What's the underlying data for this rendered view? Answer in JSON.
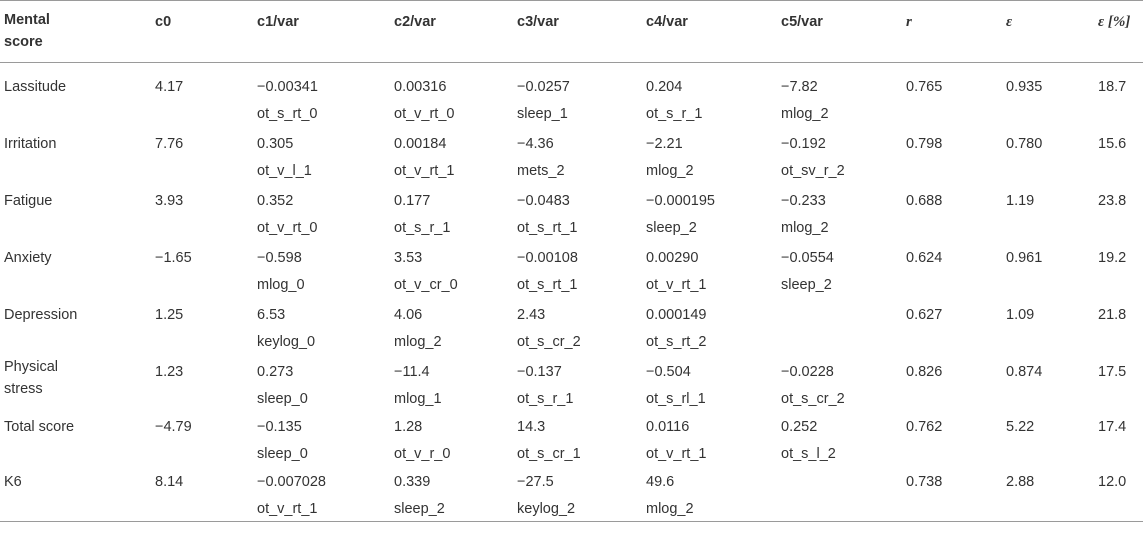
{
  "header": {
    "mental_score": "Mental score",
    "c0": "c0",
    "c1": "c1/var",
    "c2": "c2/var",
    "c3": "c3/var",
    "c4": "c4/var",
    "c5": "c5/var",
    "r": "r",
    "eps": "ε",
    "eps_pct": "ε [%]"
  },
  "rows": [
    {
      "name": "Lassitude",
      "c0": "4.17",
      "c1": "−0.00341",
      "c1_var": "ot_s_rt_0",
      "c2": "0.00316",
      "c2_var": "ot_v_rt_0",
      "c3": "−0.0257",
      "c3_var": "sleep_1",
      "c4": "0.204",
      "c4_var": "ot_s_r_1",
      "c5": "−7.82",
      "c5_var": "mlog_2",
      "r": "0.765",
      "eps": "0.935",
      "eps_pct": "18.7"
    },
    {
      "name": "Irritation",
      "c0": "7.76",
      "c1": "0.305",
      "c1_var": "ot_v_l_1",
      "c2": "0.00184",
      "c2_var": "ot_v_rt_1",
      "c3": "−4.36",
      "c3_var": "mets_2",
      "c4": "−2.21",
      "c4_var": "mlog_2",
      "c5": "−0.192",
      "c5_var": "ot_sv_r_2",
      "r": "0.798",
      "eps": "0.780",
      "eps_pct": "15.6"
    },
    {
      "name": "Fatigue",
      "c0": "3.93",
      "c1": "0.352",
      "c1_var": "ot_v_rt_0",
      "c2": "0.177",
      "c2_var": "ot_s_r_1",
      "c3": "−0.0483",
      "c3_var": "ot_s_rt_1",
      "c4": "−0.000195",
      "c4_var": "sleep_2",
      "c5": "−0.233",
      "c5_var": "mlog_2",
      "r": "0.688",
      "eps": "1.19",
      "eps_pct": "23.8"
    },
    {
      "name": "Anxiety",
      "c0": "−1.65",
      "c1": "−0.598",
      "c1_var": "mlog_0",
      "c2": "3.53",
      "c2_var": "ot_v_cr_0",
      "c3": "−0.00108",
      "c3_var": "ot_s_rt_1",
      "c4": "0.00290",
      "c4_var": "ot_v_rt_1",
      "c5": "−0.0554",
      "c5_var": "sleep_2",
      "r": "0.624",
      "eps": "0.961",
      "eps_pct": "19.2"
    },
    {
      "name": "Depression",
      "c0": "1.25",
      "c1": "6.53",
      "c1_var": "keylog_0",
      "c2": "4.06",
      "c2_var": "mlog_2",
      "c3": "2.43",
      "c3_var": "ot_s_cr_2",
      "c4": "0.000149",
      "c4_var": "ot_s_rt_2",
      "c5": "",
      "c5_var": "",
      "r": "0.627",
      "eps": "1.09",
      "eps_pct": "21.8"
    },
    {
      "name": "Physical stress",
      "c0": "1.23",
      "c1": "0.273",
      "c1_var": "sleep_0",
      "c2": "−11.4",
      "c2_var": "mlog_1",
      "c3": "−0.137",
      "c3_var": "ot_s_r_1",
      "c4": "−0.504",
      "c4_var": "ot_s_rl_1",
      "c5": "−0.0228",
      "c5_var": "ot_s_cr_2",
      "r": "0.826",
      "eps": "0.874",
      "eps_pct": "17.5"
    },
    {
      "name": "Total score",
      "c0": "−4.79",
      "c1": "−0.135",
      "c1_var": "sleep_0",
      "c2": "1.28",
      "c2_var": "ot_v_r_0",
      "c3": "14.3",
      "c3_var": "ot_s_cr_1",
      "c4": "0.0116",
      "c4_var": "ot_v_rt_1",
      "c5": "0.252",
      "c5_var": "ot_s_l_2",
      "r": "0.762",
      "eps": "5.22",
      "eps_pct": "17.4"
    },
    {
      "name": "K6",
      "c0": "8.14",
      "c1": "−0.007028",
      "c1_var": "ot_v_rt_1",
      "c2": "0.339",
      "c2_var": "sleep_2",
      "c3": "−27.5",
      "c3_var": "keylog_2",
      "c4": "49.6",
      "c4_var": "mlog_2",
      "c5": "",
      "c5_var": "",
      "r": "0.738",
      "eps": "2.88",
      "eps_pct": "12.0"
    }
  ]
}
